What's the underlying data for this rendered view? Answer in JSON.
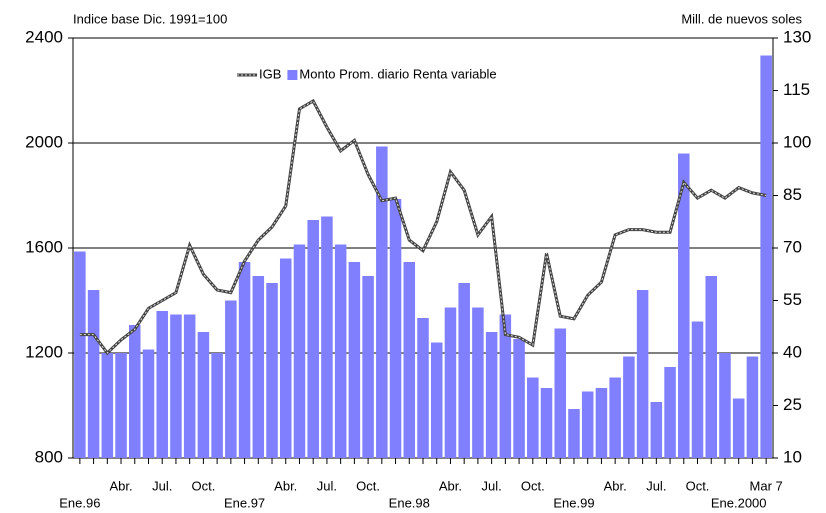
{
  "chart_data": {
    "type": "combo",
    "y_label": "Indice base Dic. 1991=100",
    "y2_label": "Mill. de nuevos soles",
    "categories": [
      "Ene.96",
      null,
      null,
      "Abr.",
      null,
      null,
      "Jul.",
      null,
      null,
      "Oct.",
      null,
      null,
      "Ene.97",
      null,
      null,
      "Abr.",
      null,
      null,
      "Jul.",
      null,
      null,
      "Oct.",
      null,
      null,
      "Ene.98",
      null,
      null,
      "Abr.",
      null,
      null,
      "Jul.",
      null,
      null,
      "Oct.",
      null,
      null,
      "Ene.99",
      null,
      null,
      "Abr.",
      null,
      null,
      "Jul.",
      null,
      null,
      "Oct.",
      null,
      null,
      "Ene.2000",
      null,
      "Mar 7"
    ],
    "series": [
      {
        "name": "IGB",
        "type": "line",
        "axis": "y",
        "color": "#444444",
        "values": [
          1270,
          1270,
          1200,
          1250,
          1290,
          1370,
          1400,
          1430,
          1610,
          1500,
          1440,
          1430,
          1550,
          1630,
          1680,
          1760,
          2130,
          2160,
          2060,
          1970,
          2010,
          1880,
          1780,
          1790,
          1630,
          1590,
          1700,
          1890,
          1820,
          1650,
          1720,
          1270,
          1260,
          1230,
          1580,
          1340,
          1330,
          1420,
          1470,
          1650,
          1670,
          1670,
          1660,
          1660,
          1850,
          1790,
          1820,
          1790,
          1830,
          1810,
          1800
        ]
      },
      {
        "name": "Monto Prom. diario Renta variable",
        "type": "bar",
        "axis": "y2",
        "color": "#8080ff",
        "values": [
          69,
          58,
          40,
          40,
          48,
          41,
          52,
          51,
          51,
          46,
          40,
          55,
          66,
          62,
          60,
          67,
          71,
          78,
          79,
          71,
          66,
          62,
          99,
          84,
          66,
          50,
          43,
          53,
          60,
          53,
          46,
          51,
          44,
          33,
          30,
          47,
          24,
          29,
          30,
          33,
          39,
          58,
          26,
          36,
          97,
          49,
          62,
          40,
          27,
          39,
          125
        ]
      }
    ],
    "ylim": [
      800,
      2400
    ],
    "yticks": [
      800,
      1200,
      1600,
      2000,
      2400
    ],
    "y2lim": [
      10,
      130
    ],
    "y2ticks": [
      10,
      25,
      40,
      55,
      70,
      85,
      100,
      115,
      130
    ],
    "grid": true
  }
}
